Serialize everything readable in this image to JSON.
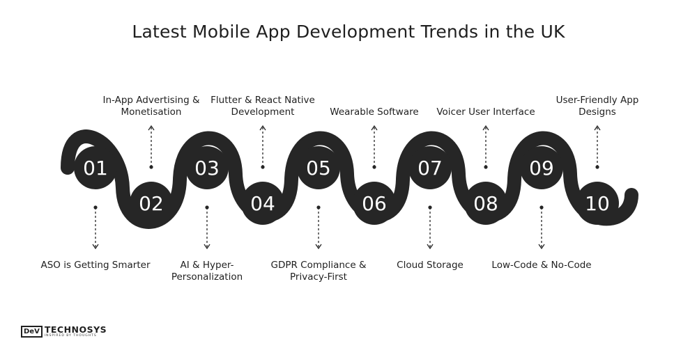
{
  "title": "Latest Mobile App Development Trends in the UK",
  "steps": [
    {
      "num": "01",
      "label": "ASO is Getting Smarter"
    },
    {
      "num": "02",
      "label": "In-App Advertising & Monetisation"
    },
    {
      "num": "03",
      "label": "AI & Hyper-Personalization"
    },
    {
      "num": "04",
      "label": "Flutter & React Native Development"
    },
    {
      "num": "05",
      "label": "GDPR Compliance & Privacy-First"
    },
    {
      "num": "06",
      "label": "Wearable Software"
    },
    {
      "num": "07",
      "label": "Cloud Storage"
    },
    {
      "num": "08",
      "label": "Voicer User Interface"
    },
    {
      "num": "09",
      "label": "Low-Code & No-Code"
    },
    {
      "num": "10",
      "label": "User-Friendly App Designs"
    }
  ],
  "logo": {
    "box": "DeV",
    "name": "TECHNOSYS",
    "tagline": "INSPIRED BY THOUGHTS"
  },
  "colors": {
    "dark": "#262626",
    "text": "#1f1f1f",
    "background": "#ffffff"
  }
}
